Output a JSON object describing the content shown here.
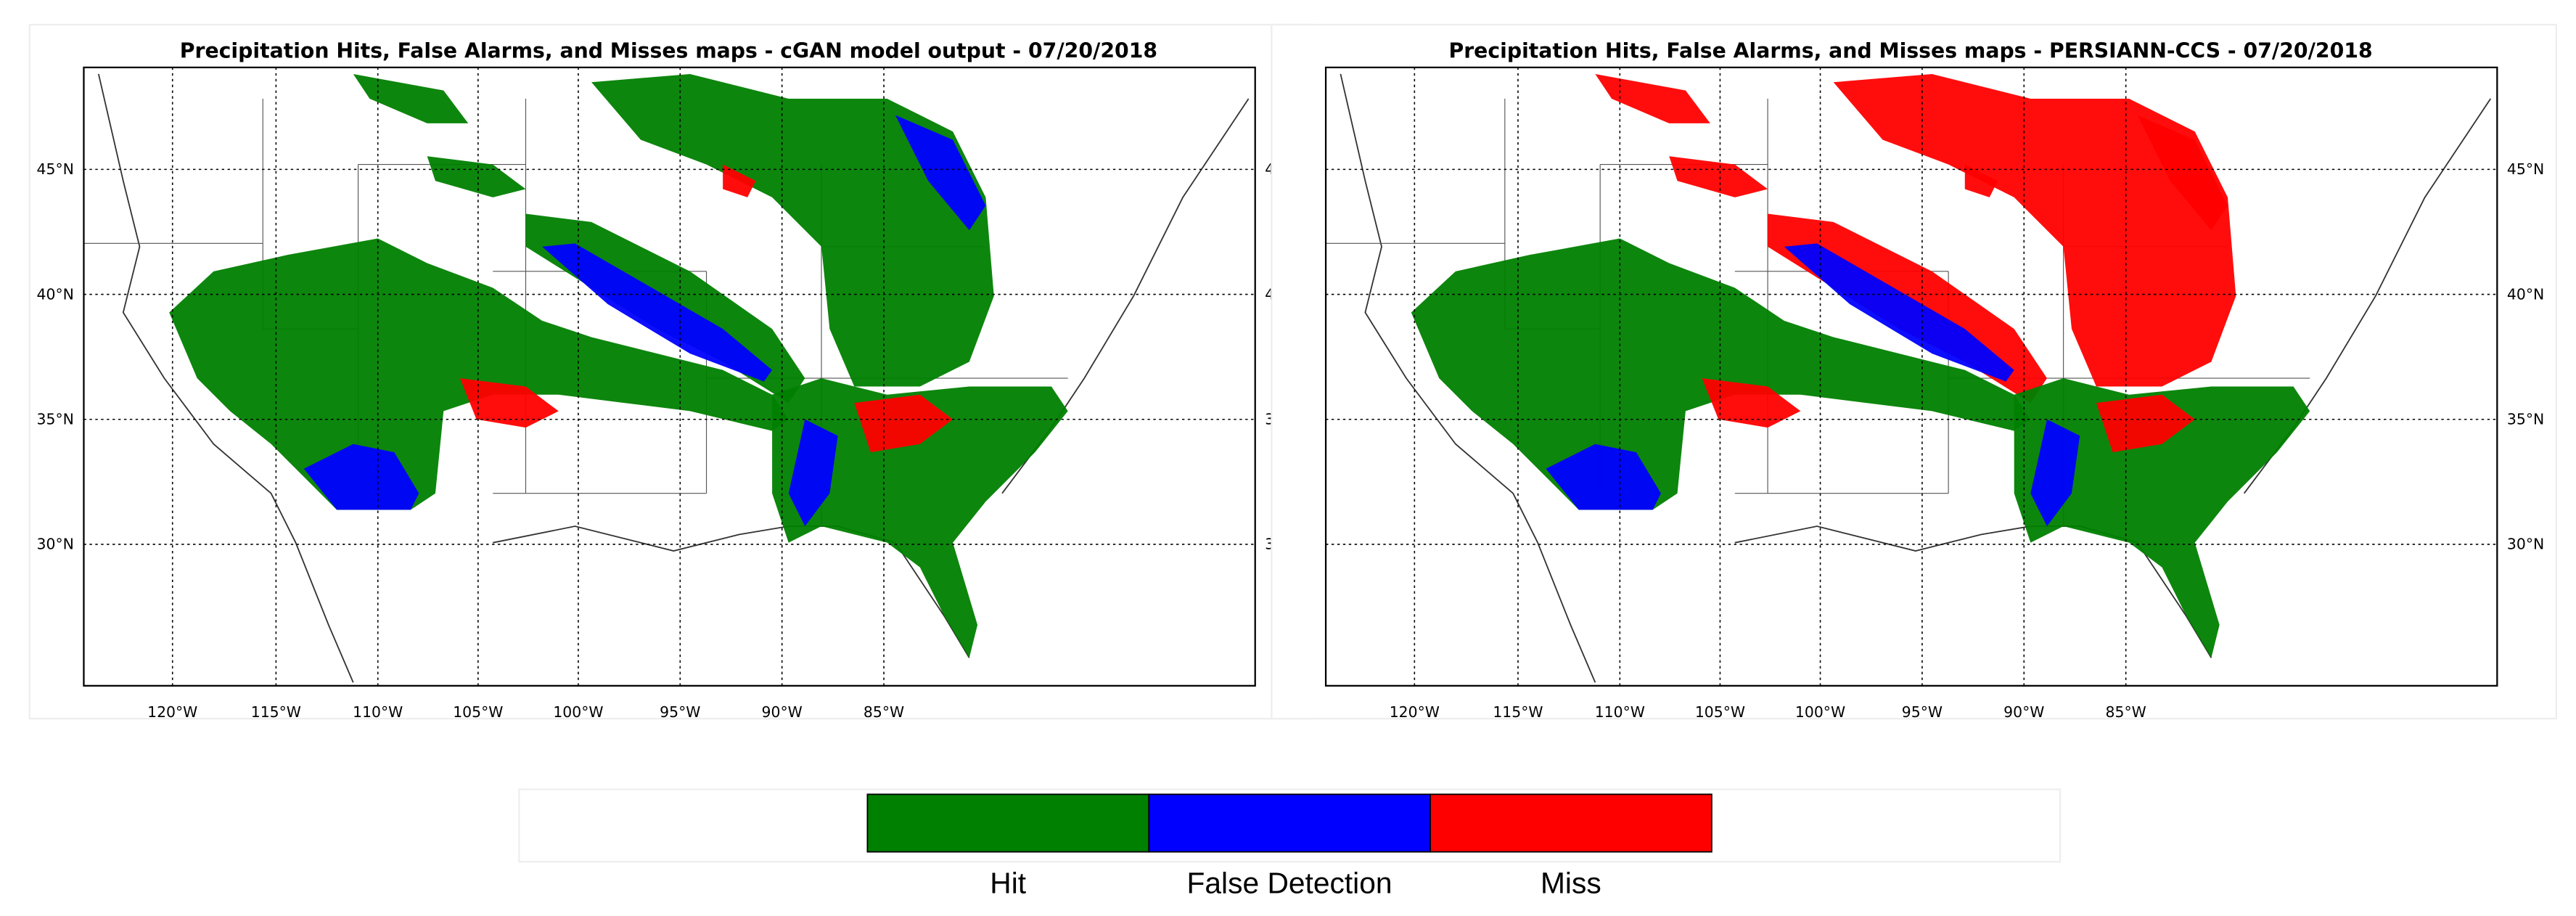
{
  "panels": [
    {
      "title": "Precipitation Hits, False Alarms, and Misses maps - cGAN model output - 07/20/2018",
      "lat_labels": [
        "45°N",
        "40°N",
        "35°N",
        "30°N"
      ],
      "lon_labels": [
        "120°W",
        "115°W",
        "110°W",
        "105°W",
        "100°W",
        "95°W",
        "90°W",
        "85°W"
      ]
    },
    {
      "title": "Precipitation Hits, False Alarms, and Misses maps - PERSIANN-CCS - 07/20/2018",
      "lat_labels": [
        "45°N",
        "40°N",
        "35°N",
        "30°N"
      ],
      "lon_labels": [
        "120°W",
        "115°W",
        "110°W",
        "105°W",
        "100°W",
        "95°W",
        "90°W",
        "85°W"
      ]
    }
  ],
  "legend": {
    "items": [
      {
        "label": "Hit",
        "color": "#008000"
      },
      {
        "label": "False Detection",
        "color": "#0000ff"
      },
      {
        "label": "Miss",
        "color": "#ff0000"
      }
    ]
  }
}
